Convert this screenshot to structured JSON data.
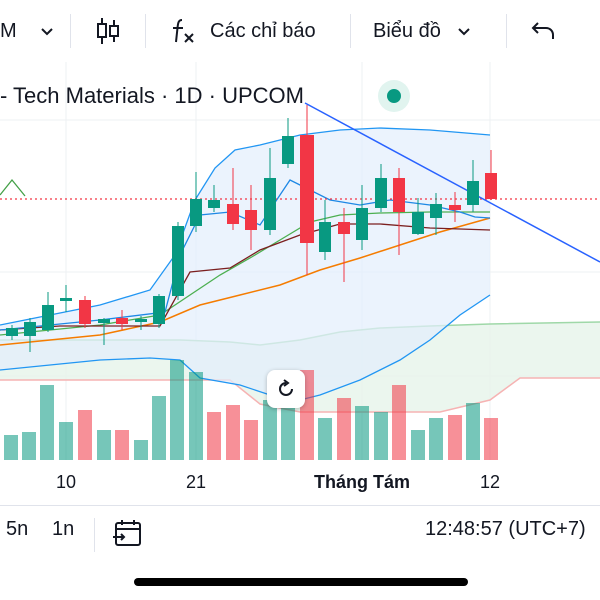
{
  "toolbar": {
    "interval_label": "M",
    "indicators_label": "Các chỉ báo",
    "chart_type_label": "Biểu đồ"
  },
  "symbol": {
    "title": "- Tech Materials · 1D · UPCOM"
  },
  "xaxis": {
    "ticks": [
      "10",
      "21",
      "Tháng Tám",
      "12"
    ]
  },
  "bottombar": {
    "range_5n": "5n",
    "range_1n": "1n",
    "time": "12:48:57 (UTC+7)"
  },
  "colors": {
    "up": "#089981",
    "down": "#f23645",
    "accent": "#2962ff"
  }
}
